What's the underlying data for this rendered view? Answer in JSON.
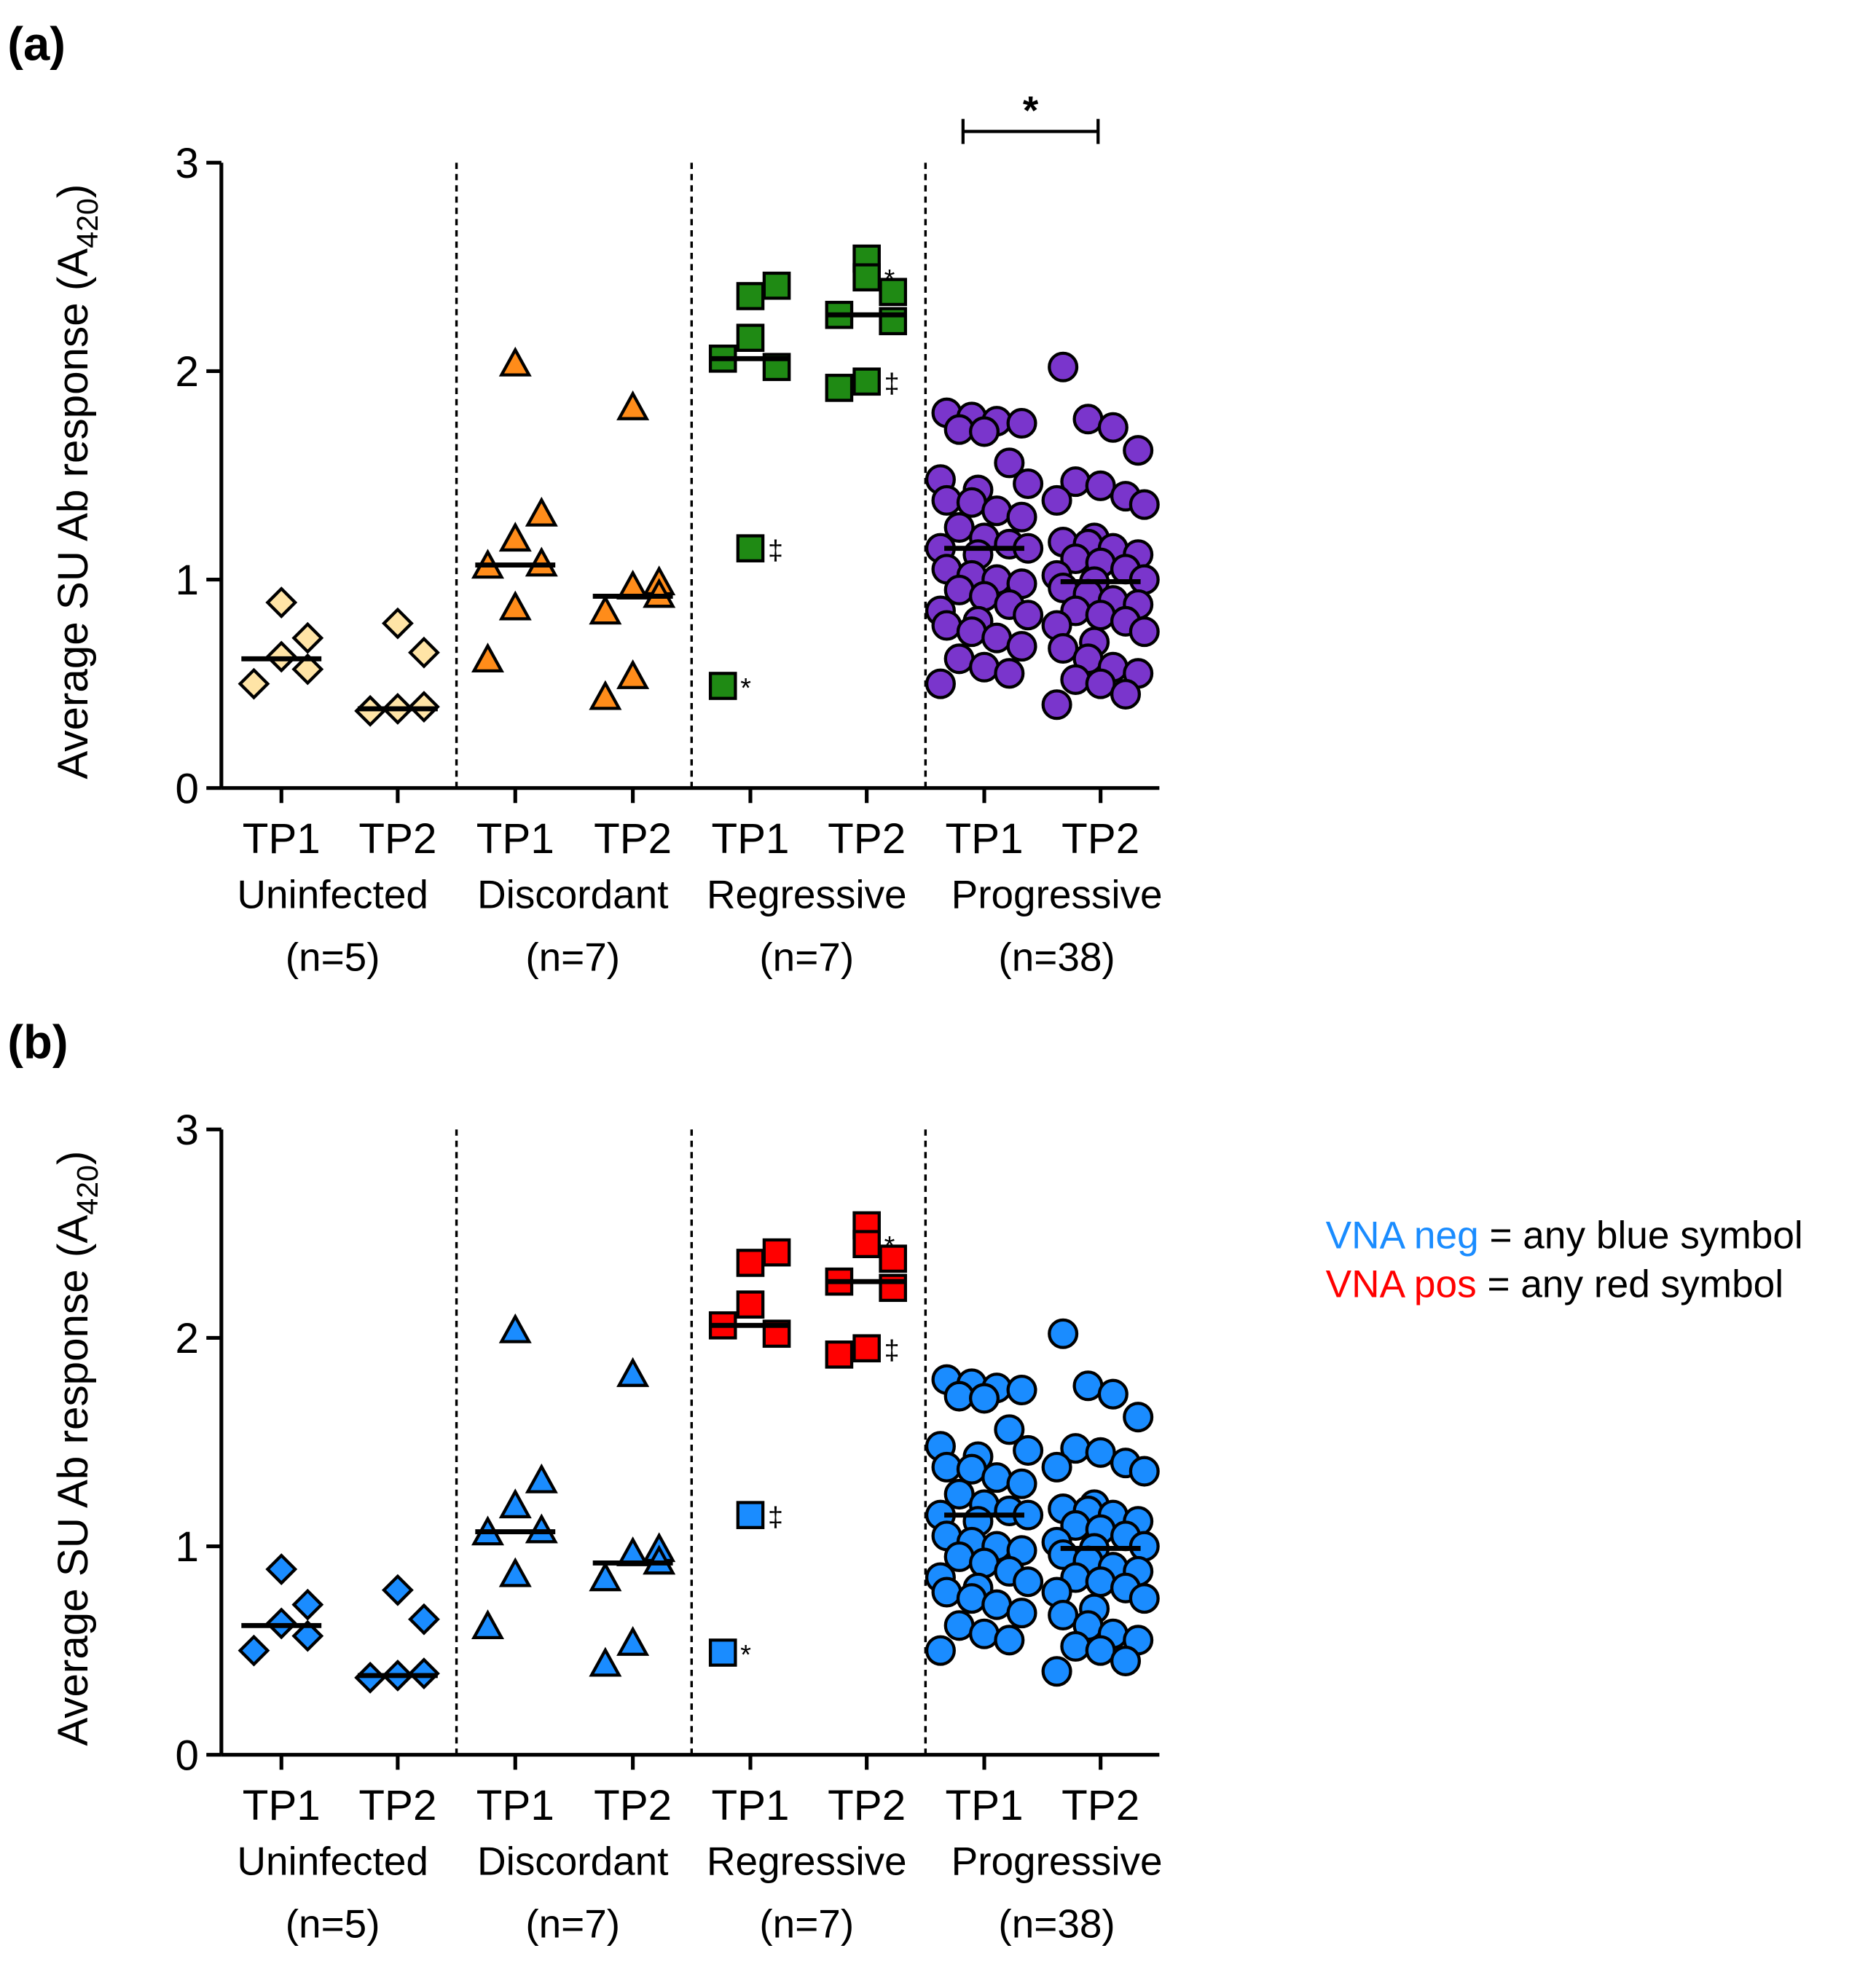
{
  "panel_labels": [
    "(a)",
    "(b)"
  ],
  "legend": {
    "neg_key": "VNA neg",
    "neg_text": " = any blue symbol",
    "pos_key": "VNA pos",
    "pos_text": " = any red symbol",
    "neg_color": "#1a8cff",
    "pos_color": "#ff0000"
  },
  "chart_data": [
    {
      "type": "scatter",
      "panel": "(a)",
      "ylabel": "Average SU Ab response (A420)",
      "ylabel_main": "Average SU Ab response (A",
      "ylabel_sub": "420",
      "ylabel_close": ")",
      "ylim": [
        0,
        3
      ],
      "yticks": [
        "0",
        "1",
        "2",
        "3"
      ],
      "significance": {
        "between": [
          "Progressive TP1",
          "Progressive TP2"
        ],
        "label": "*"
      },
      "groups": [
        {
          "name": "Uninfected",
          "n_label": "(n=5)",
          "marker": "diamond",
          "timepoints": [
            {
              "label": "TP1",
              "color": "#ffe4a6",
              "median": 0.62,
              "values": [
                0.89,
                0.72,
                0.63,
                0.57,
                0.5
              ]
            },
            {
              "label": "TP2",
              "color": "#ffe4a6",
              "median": 0.38,
              "values": [
                0.79,
                0.65,
                0.38,
                0.39,
                0.37
              ]
            }
          ]
        },
        {
          "name": "Discordant",
          "n_label": "(n=7)",
          "marker": "triangle",
          "timepoints": [
            {
              "label": "TP1",
              "color": "#ff8c1a",
              "median": 1.07,
              "values": [
                2.03,
                1.31,
                1.19,
                1.07,
                1.06,
                0.86,
                0.61
              ]
            },
            {
              "label": "TP2",
              "color": "#ff8c1a",
              "median": 0.92,
              "values": [
                1.82,
                0.98,
                0.96,
                0.92,
                0.84,
                0.53,
                0.43
              ]
            }
          ]
        },
        {
          "name": "Regressive",
          "n_label": "(n=7)",
          "marker": "square",
          "timepoints": [
            {
              "label": "TP1",
              "color": "#1f8a14",
              "median": 2.06,
              "values": [
                2.36,
                2.41,
                2.16,
                2.02,
                2.06,
                1.15,
                0.49
              ],
              "annotations": {
                "5": "‡",
                "6": "*"
              }
            },
            {
              "label": "TP2",
              "color": "#1f8a14",
              "median": 2.27,
              "values": [
                2.54,
                2.38,
                2.45,
                2.24,
                2.27,
                1.95,
                1.92
              ],
              "annotations": {
                "2": "*",
                "5": "‡"
              }
            }
          ]
        },
        {
          "name": "Progressive",
          "n_label": "(n=38)",
          "marker": "circle",
          "timepoints": [
            {
              "label": "TP1",
              "color": "#7a35cc",
              "median": 1.15,
              "values": [
                1.8,
                1.78,
                1.76,
                1.75,
                1.72,
                1.71,
                1.56,
                1.48,
                1.46,
                1.43,
                1.38,
                1.37,
                1.33,
                1.3,
                1.25,
                1.2,
                1.17,
                1.15,
                1.15,
                1.12,
                1.05,
                1.02,
                1.0,
                0.98,
                0.95,
                0.92,
                0.88,
                0.85,
                0.83,
                0.8,
                0.78,
                0.75,
                0.72,
                0.68,
                0.62,
                0.58,
                0.55,
                0.5
              ]
            },
            {
              "label": "TP2",
              "color": "#7a35cc",
              "median": 0.99,
              "values": [
                2.02,
                1.77,
                1.73,
                1.62,
                1.47,
                1.45,
                1.4,
                1.38,
                1.36,
                1.2,
                1.18,
                1.17,
                1.15,
                1.12,
                1.1,
                1.08,
                1.05,
                1.02,
                1.0,
                0.99,
                0.96,
                0.93,
                0.9,
                0.88,
                0.85,
                0.83,
                0.8,
                0.78,
                0.75,
                0.7,
                0.67,
                0.62,
                0.58,
                0.55,
                0.52,
                0.5,
                0.45,
                0.4
              ]
            }
          ]
        }
      ]
    },
    {
      "type": "scatter",
      "panel": "(b)",
      "ylabel": "Average SU Ab response (A420)",
      "ylabel_main": "Average SU Ab response (A",
      "ylabel_sub": "420",
      "ylabel_close": ")",
      "ylim": [
        0,
        3
      ],
      "yticks": [
        "0",
        "1",
        "2",
        "3"
      ],
      "groups": [
        {
          "name": "Uninfected",
          "n_label": "(n=5)",
          "marker": "diamond",
          "timepoints": [
            {
              "label": "TP1",
              "color": "#1a8cff",
              "median": 0.62,
              "values": [
                0.89,
                0.72,
                0.63,
                0.57,
                0.5
              ]
            },
            {
              "label": "TP2",
              "color": "#1a8cff",
              "median": 0.38,
              "values": [
                0.79,
                0.65,
                0.38,
                0.39,
                0.37
              ]
            }
          ]
        },
        {
          "name": "Discordant",
          "n_label": "(n=7)",
          "marker": "triangle",
          "timepoints": [
            {
              "label": "TP1",
              "color": "#1a8cff",
              "median": 1.07,
              "values": [
                2.03,
                1.31,
                1.19,
                1.07,
                1.06,
                0.86,
                0.61
              ]
            },
            {
              "label": "TP2",
              "color": "#1a8cff",
              "median": 0.92,
              "values": [
                1.82,
                0.98,
                0.96,
                0.92,
                0.84,
                0.53,
                0.43
              ]
            }
          ]
        },
        {
          "name": "Regressive",
          "n_label": "(n=7)",
          "marker": "square",
          "timepoints": [
            {
              "label": "TP1",
              "color": "#ff0000",
              "median": 2.06,
              "values": [
                2.36,
                2.41,
                2.16,
                2.02,
                2.06,
                1.15,
                0.49
              ],
              "point_colors": {
                "5": "#1a8cff",
                "6": "#1a8cff"
              },
              "annotations": {
                "5": "‡",
                "6": "*"
              }
            },
            {
              "label": "TP2",
              "color": "#ff0000",
              "median": 2.27,
              "values": [
                2.54,
                2.38,
                2.45,
                2.24,
                2.27,
                1.95,
                1.92
              ],
              "annotations": {
                "2": "*",
                "5": "‡"
              }
            }
          ]
        },
        {
          "name": "Progressive",
          "n_label": "(n=38)",
          "marker": "circle",
          "timepoints": [
            {
              "label": "TP1",
              "color": "#1a8cff",
              "median": 1.15,
              "values": [
                1.8,
                1.78,
                1.76,
                1.75,
                1.72,
                1.71,
                1.56,
                1.48,
                1.46,
                1.43,
                1.38,
                1.37,
                1.33,
                1.3,
                1.25,
                1.2,
                1.17,
                1.15,
                1.15,
                1.12,
                1.05,
                1.02,
                1.0,
                0.98,
                0.95,
                0.92,
                0.88,
                0.85,
                0.83,
                0.8,
                0.78,
                0.75,
                0.72,
                0.68,
                0.62,
                0.58,
                0.55,
                0.5
              ]
            },
            {
              "label": "TP2",
              "color": "#1a8cff",
              "median": 0.99,
              "values": [
                2.02,
                1.77,
                1.73,
                1.62,
                1.47,
                1.45,
                1.4,
                1.38,
                1.36,
                1.2,
                1.18,
                1.17,
                1.15,
                1.12,
                1.1,
                1.08,
                1.05,
                1.02,
                1.0,
                0.99,
                0.96,
                0.93,
                0.9,
                0.88,
                0.85,
                0.83,
                0.8,
                0.78,
                0.75,
                0.7,
                0.67,
                0.62,
                0.58,
                0.55,
                0.52,
                0.5,
                0.45,
                0.4
              ]
            }
          ]
        }
      ]
    }
  ]
}
